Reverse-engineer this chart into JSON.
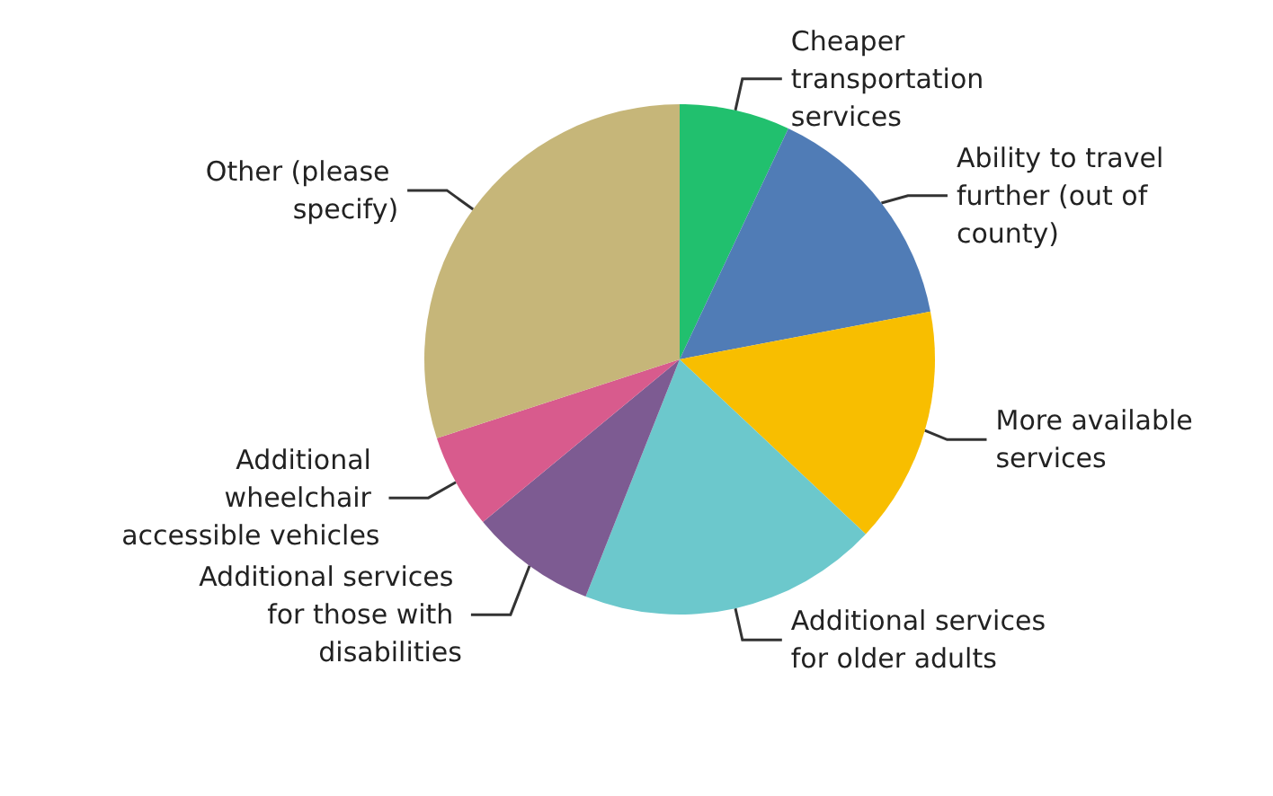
{
  "chart_data": {
    "type": "pie",
    "categories": [
      "Cheaper transportation services",
      "Ability to travel further (out of county)",
      "More available services",
      "Additional services for older adults",
      "Additional services for those with disabilities",
      "Additional wheelchair accessible vehicles",
      "Other (please specify)"
    ],
    "values": [
      7,
      15,
      15,
      19,
      8,
      6,
      30
    ],
    "colors": [
      "#21c06e",
      "#507cb6",
      "#f8be00",
      "#6cc8cc",
      "#7d5b92",
      "#d85b8d",
      "#c6b679"
    ]
  }
}
